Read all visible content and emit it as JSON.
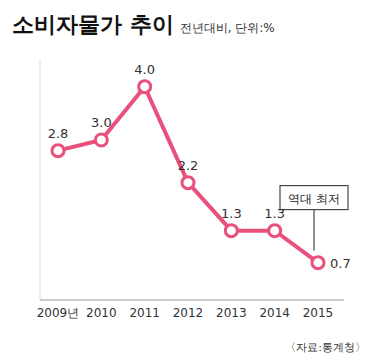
{
  "chart_data": {
    "type": "line",
    "title": "소비자물가 추이",
    "subtitle": "전년대비, 단위:%",
    "categories": [
      "2009년",
      "2010",
      "2011",
      "2012",
      "2013",
      "2014",
      "2015"
    ],
    "values": [
      2.8,
      3.0,
      4.0,
      2.2,
      1.3,
      1.3,
      0.7
    ],
    "value_labels": [
      "2.8",
      "3.0",
      "4.0",
      "2.2",
      "1.3",
      "1.3",
      "0.7"
    ],
    "color": "#e9507c",
    "ylim": [
      0,
      4.5
    ],
    "yticks": [
      0,
      1,
      2,
      3,
      4
    ],
    "grid": false,
    "data_labels": true,
    "tick_labels": "x",
    "marker": "circle",
    "annotations": [
      {
        "text": "역대 최저",
        "x": "2015",
        "y": 0.7
      }
    ],
    "source": "〈자료:통계청〉"
  }
}
